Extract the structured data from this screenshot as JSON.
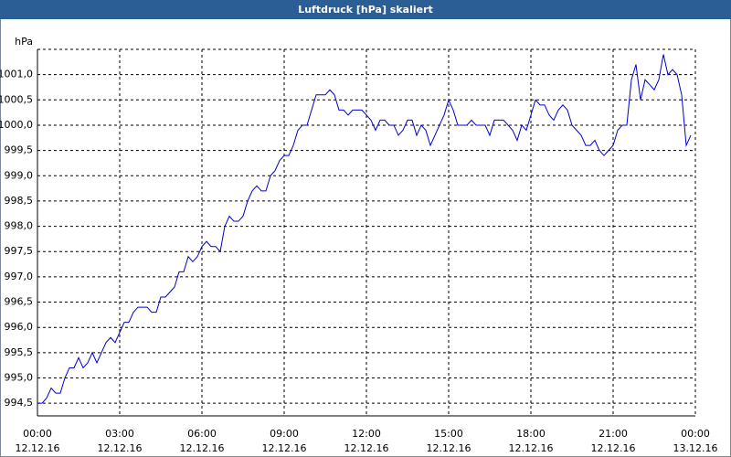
{
  "chart_data": {
    "type": "line",
    "title": "Luftdruck [hPa] skaliert",
    "y_label": "hPa",
    "color": "#0000cc",
    "grid": true,
    "xlim": [
      0,
      1440
    ],
    "xticks": [
      {
        "value": 0,
        "label": "00:00"
      },
      {
        "value": 180,
        "label": "03:00"
      },
      {
        "value": 360,
        "label": "06:00"
      },
      {
        "value": 540,
        "label": "09:00"
      },
      {
        "value": 720,
        "label": "12:00"
      },
      {
        "value": 900,
        "label": "15:00"
      },
      {
        "value": 1080,
        "label": "18:00"
      },
      {
        "value": 1260,
        "label": "21:00"
      },
      {
        "value": 1440,
        "label": "00:00"
      }
    ],
    "xtick_dates": [
      "12.12.16",
      "12.12.16",
      "12.12.16",
      "12.12.16",
      "12.12.16",
      "12.12.16",
      "12.12.16",
      "12.12.16",
      "13.12.16"
    ],
    "ylim": [
      994.25,
      1001.5
    ],
    "yticks": [
      {
        "value": 994.5,
        "label": "994,5"
      },
      {
        "value": 995,
        "label": "995,0"
      },
      {
        "value": 995.5,
        "label": "995,5"
      },
      {
        "value": 996,
        "label": "996,0"
      },
      {
        "value": 996.5,
        "label": "996,5"
      },
      {
        "value": 997,
        "label": "997,0"
      },
      {
        "value": 997.5,
        "label": "997,5"
      },
      {
        "value": 998,
        "label": "998,0"
      },
      {
        "value": 998.5,
        "label": "998,5"
      },
      {
        "value": 999,
        "label": "999,0"
      },
      {
        "value": 999.5,
        "label": "999,5"
      },
      {
        "value": 1000,
        "label": "1000,0"
      },
      {
        "value": 1000.5,
        "label": "1000,5"
      },
      {
        "value": 1001,
        "label": "1001,0"
      }
    ],
    "x": [
      0,
      10,
      20,
      30,
      40,
      50,
      60,
      70,
      80,
      90,
      100,
      110,
      120,
      130,
      140,
      150,
      160,
      170,
      180,
      190,
      200,
      210,
      220,
      230,
      240,
      250,
      260,
      270,
      280,
      290,
      300,
      310,
      320,
      330,
      340,
      350,
      360,
      370,
      380,
      390,
      400,
      410,
      420,
      430,
      440,
      450,
      460,
      470,
      480,
      490,
      500,
      510,
      520,
      530,
      540,
      550,
      560,
      570,
      580,
      590,
      600,
      610,
      620,
      630,
      640,
      650,
      660,
      670,
      680,
      690,
      700,
      710,
      720,
      730,
      740,
      750,
      760,
      770,
      780,
      790,
      800,
      810,
      820,
      830,
      840,
      850,
      860,
      870,
      880,
      890,
      900,
      910,
      920,
      930,
      940,
      950,
      960,
      970,
      980,
      990,
      1000,
      1010,
      1020,
      1030,
      1040,
      1050,
      1060,
      1070,
      1080,
      1090,
      1100,
      1110,
      1120,
      1130,
      1140,
      1150,
      1160,
      1170,
      1180,
      1190,
      1200,
      1210,
      1220,
      1230,
      1240,
      1250,
      1260,
      1270,
      1280,
      1290,
      1300,
      1310,
      1320,
      1330,
      1340,
      1350,
      1360,
      1370,
      1380,
      1390,
      1400,
      1410,
      1420,
      1430
    ],
    "values": [
      994.5,
      994.5,
      994.6,
      994.8,
      994.7,
      994.7,
      995.0,
      995.2,
      995.2,
      995.4,
      995.2,
      995.3,
      995.5,
      995.3,
      995.5,
      995.7,
      995.8,
      995.7,
      995.9,
      996.1,
      996.1,
      996.3,
      996.4,
      996.4,
      996.4,
      996.3,
      996.3,
      996.6,
      996.6,
      996.7,
      996.8,
      997.1,
      997.1,
      997.4,
      997.3,
      997.4,
      997.6,
      997.7,
      997.6,
      997.6,
      997.5,
      998.0,
      998.2,
      998.1,
      998.1,
      998.2,
      998.5,
      998.7,
      998.8,
      998.7,
      998.7,
      999.0,
      999.1,
      999.3,
      999.4,
      999.4,
      999.6,
      999.9,
      1000.0,
      1000.0,
      1000.3,
      1000.6,
      1000.6,
      1000.6,
      1000.7,
      1000.6,
      1000.3,
      1000.3,
      1000.2,
      1000.3,
      1000.3,
      1000.3,
      1000.2,
      1000.1,
      999.9,
      1000.1,
      1000.1,
      1000.0,
      1000.0,
      999.8,
      999.9,
      1000.1,
      1000.1,
      999.8,
      1000.0,
      999.9,
      999.6,
      999.8,
      1000.0,
      1000.2,
      1000.5,
      1000.3,
      1000.0,
      1000.0,
      1000.0,
      1000.1,
      1000.0,
      1000.0,
      1000.0,
      999.8,
      1000.1,
      1000.1,
      1000.1,
      1000.0,
      999.9,
      999.7,
      1000.0,
      999.9,
      1000.2,
      1000.5,
      1000.4,
      1000.4,
      1000.2,
      1000.1,
      1000.3,
      1000.4,
      1000.3,
      1000.0,
      999.9,
      999.8,
      999.6,
      999.6,
      999.7,
      999.5,
      999.4,
      999.5,
      999.6,
      999.9,
      1000.0,
      1000.0,
      1000.9,
      1001.2,
      1000.5,
      1000.9,
      1000.8,
      1000.7,
      1000.9,
      1001.4,
      1001.0,
      1001.1,
      1001.0,
      1000.6,
      999.6,
      999.8
    ]
  }
}
